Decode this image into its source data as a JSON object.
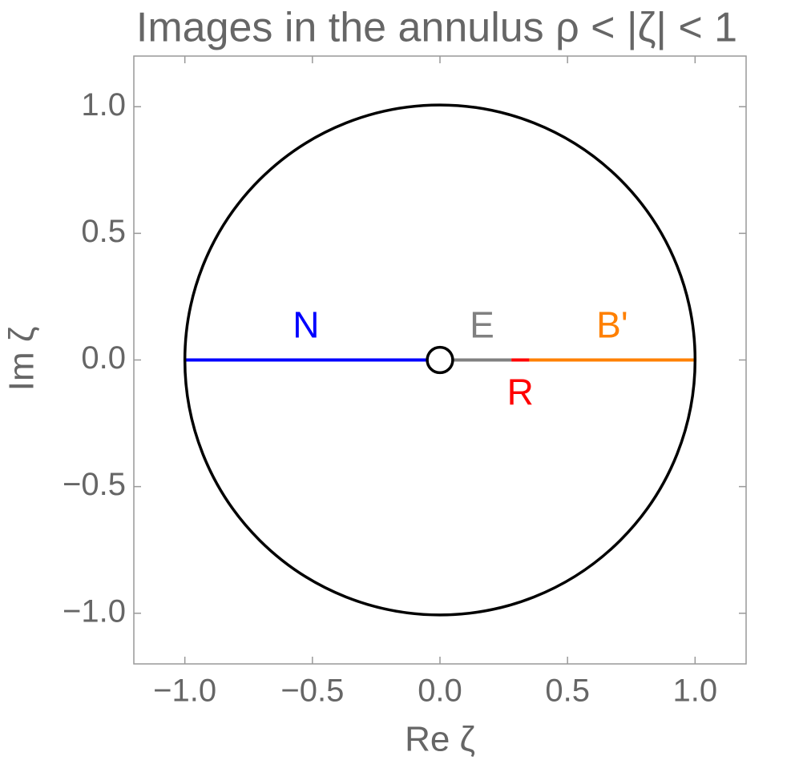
{
  "chart_data": {
    "type": "line",
    "title": "Images in the annulus  ρ < |ζ| < 1",
    "x_label": "Re ζ",
    "y_label": "Im ζ",
    "xlim": [
      -1.2,
      1.2
    ],
    "ylim": [
      -1.2,
      1.2
    ],
    "xticks": [
      {
        "value": -1.0,
        "label": "−1.0"
      },
      {
        "value": -0.5,
        "label": "−0.5"
      },
      {
        "value": 0,
        "label": "0.0"
      },
      {
        "value": 0.5,
        "label": "0.5"
      },
      {
        "value": 1.0,
        "label": "1.0"
      }
    ],
    "yticks": [
      {
        "value": -1.0,
        "label": "−1.0"
      },
      {
        "value": -0.5,
        "label": "−0.5"
      },
      {
        "value": 0,
        "label": "0.0"
      },
      {
        "value": 0.5,
        "label": "0.5"
      },
      {
        "value": 1.0,
        "label": "1.0"
      }
    ],
    "circles": [
      {
        "r": 1,
        "color": "#000000"
      },
      {
        "r": 0.05,
        "color": "#000000"
      }
    ],
    "series": [
      {
        "name": "N",
        "color": "#0000ff",
        "x": [
          -1,
          -0.05
        ],
        "values": [
          0,
          0
        ],
        "label_side": "above"
      },
      {
        "name": "E",
        "color": "#808080",
        "x": [
          0.05,
          0.28
        ],
        "values": [
          0,
          0
        ],
        "label_side": "above"
      },
      {
        "name": "R",
        "color": "#ff0000",
        "x": [
          0.28,
          0.35
        ],
        "values": [
          0,
          0
        ],
        "label_side": "below"
      },
      {
        "name": "B'",
        "color": "#ff8000",
        "x": [
          0.35,
          1
        ],
        "values": [
          0,
          0
        ],
        "label_side": "above"
      }
    ]
  }
}
